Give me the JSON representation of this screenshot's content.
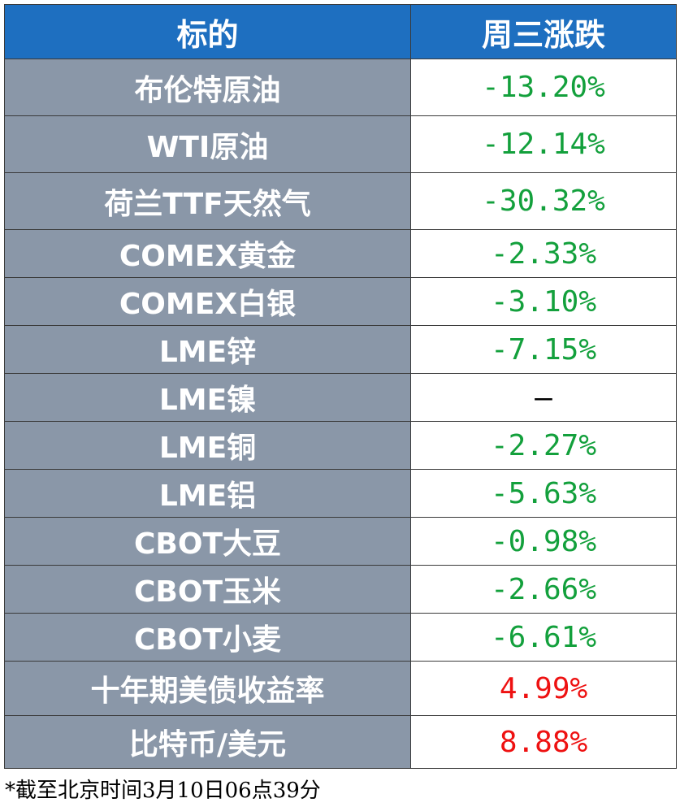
{
  "table": {
    "header": [
      "标的",
      "周三涨跌"
    ],
    "rows": [
      [
        "布伦特原油",
        "-13.20%"
      ],
      [
        "WTI原油",
        "-12.14%"
      ],
      [
        "荷兰TTF天然气",
        "-30.32%"
      ],
      [
        "COMEX黄金",
        "-2.33%"
      ],
      [
        "COMEX白银",
        "-3.10%"
      ],
      [
        "LME锌",
        "-7.15%"
      ],
      [
        "LME镍",
        "–"
      ],
      [
        "LME铜",
        "-2.27%"
      ],
      [
        "LME铝",
        "-5.63%"
      ],
      [
        "CBOT大豆",
        "-0.98%"
      ],
      [
        "CBOT玉米",
        "-2.66%"
      ],
      [
        "CBOT小麦",
        "-6.61%"
      ],
      [
        "十年期美债收益率",
        "4.99%"
      ],
      [
        "比特币/美元",
        "8.88%"
      ]
    ]
  },
  "footnote": "*截至北京时间3月10日06点39分"
}
